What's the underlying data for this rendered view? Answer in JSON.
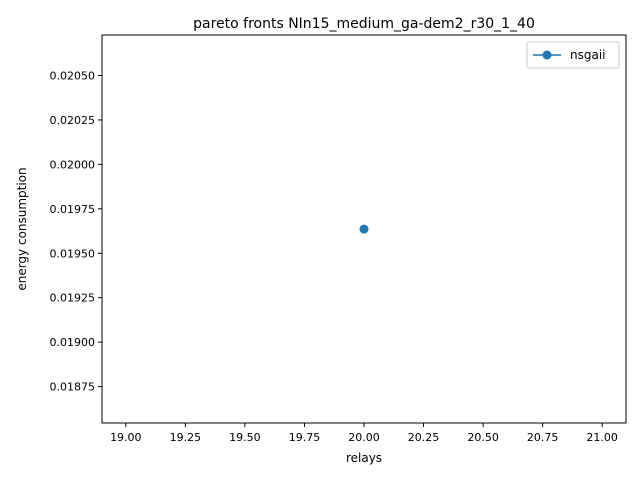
{
  "chart_data": {
    "type": "line",
    "title": "pareto fronts NIn15_medium_ga-dem2_r30_1_40",
    "xlabel": "relays",
    "ylabel": "energy consumption",
    "xlim": [
      18.9,
      21.1
    ],
    "ylim": [
      0.018545,
      0.020728
    ],
    "x_ticks": [
      "19.00",
      "19.25",
      "19.50",
      "19.75",
      "20.00",
      "20.25",
      "20.50",
      "20.75",
      "21.00"
    ],
    "x_tick_values": [
      19.0,
      19.25,
      19.5,
      19.75,
      20.0,
      20.25,
      20.5,
      20.75,
      21.0
    ],
    "y_ticks": [
      "0.01875",
      "0.01900",
      "0.01925",
      "0.01950",
      "0.01975",
      "0.02000",
      "0.02025",
      "0.02050"
    ],
    "y_tick_values": [
      0.01875,
      0.019,
      0.01925,
      0.0195,
      0.01975,
      0.02,
      0.02025,
      0.0205
    ],
    "grid": false,
    "legend_position": "top-right",
    "series": [
      {
        "name": "nsgaii",
        "color": "#1f77b4",
        "marker": "circle",
        "x": [
          20.0
        ],
        "y": [
          0.019636
        ]
      }
    ]
  }
}
